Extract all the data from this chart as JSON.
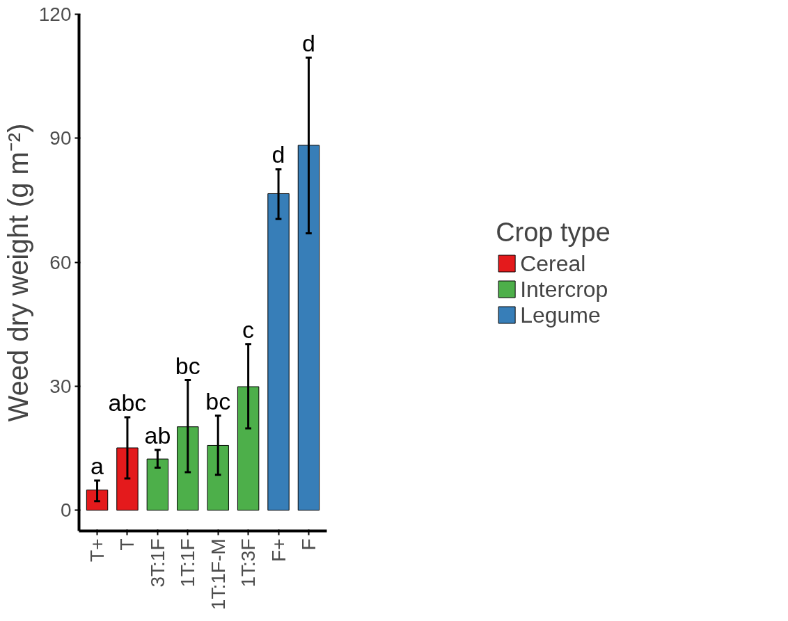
{
  "chart_data": {
    "type": "bar",
    "ylabel": "Weed dry weight (g m⁻²)",
    "legend_title": "Crop type",
    "legend": "right",
    "grid": false,
    "categories": [
      "T+",
      "T",
      "3T:1F",
      "1T:1F",
      "1T:1F-M",
      "1T:3F",
      "F+",
      "F"
    ],
    "series": [
      {
        "name": "Cereal",
        "color": "#e41a1c",
        "values": [
          4.9,
          15.1,
          null,
          null,
          null,
          null,
          null,
          null
        ],
        "errors": [
          [
            2.2,
            7.2
          ],
          [
            7.7,
            22.5
          ],
          null,
          null,
          null,
          null,
          null,
          null
        ]
      },
      {
        "name": "Intercrop",
        "color": "#4daf4a",
        "values": [
          null,
          null,
          12.4,
          20.2,
          15.7,
          29.9,
          null,
          null
        ],
        "errors": [
          null,
          null,
          [
            10.3,
            14.6
          ],
          [
            9.2,
            31.5
          ],
          [
            8.6,
            22.9
          ],
          [
            19.8,
            40.2
          ],
          null,
          null
        ]
      },
      {
        "name": "Legume",
        "color": "#377eb8",
        "values": [
          null,
          null,
          null,
          null,
          null,
          null,
          76.6,
          88.3
        ],
        "errors": [
          null,
          null,
          null,
          null,
          null,
          null,
          [
            70.5,
            82.5
          ],
          [
            67.0,
            109.5
          ]
        ]
      }
    ],
    "ylim": [
      -5,
      120
    ],
    "yticks": [
      0,
      30,
      60,
      90,
      120
    ],
    "annotations": [
      {
        "text": "a",
        "x": "T+",
        "y": 7.2
      },
      {
        "text": "abc",
        "x": "T",
        "y": 22.5
      },
      {
        "text": "ab",
        "x": "3T:1F",
        "y": 14.6
      },
      {
        "text": "bc",
        "x": "1T:1F",
        "y": 31.5
      },
      {
        "text": "bc",
        "x": "1T:1F-M",
        "y": 22.9
      },
      {
        "text": "c",
        "x": "1T:3F",
        "y": 40.2
      },
      {
        "text": "d",
        "x": "F+",
        "y": 82.5
      },
      {
        "text": "d",
        "x": "F",
        "y": 109.5
      }
    ]
  }
}
